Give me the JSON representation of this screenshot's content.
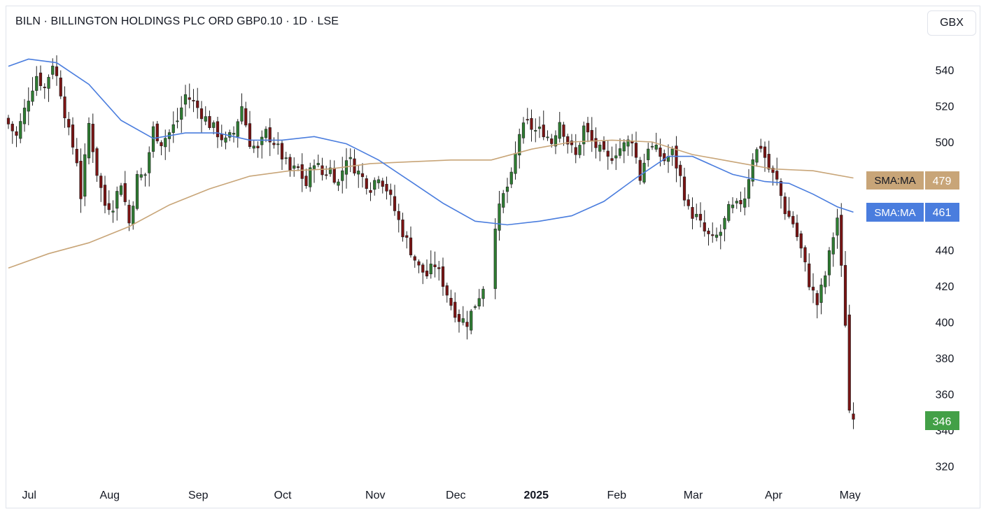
{
  "header": {
    "title": "BILN · BILLINGTON HOLDINGS PLC ORD GBP0.10 · 1D · LSE",
    "currency": "GBX"
  },
  "colors": {
    "up": "#2e7d32",
    "down": "#7b1414",
    "sma_short": "#4a7dde",
    "sma_long": "#c8a578",
    "price_badge": "#43a047"
  },
  "chart_data": {
    "type": "candlestick",
    "ylim": [
      315,
      555
    ],
    "y_ticks": [
      320,
      340,
      360,
      380,
      400,
      420,
      440,
      460,
      480,
      500,
      520,
      540
    ],
    "x_labels": [
      {
        "label": "Jul",
        "index": 5
      },
      {
        "label": "Aug",
        "index": 25
      },
      {
        "label": "Sep",
        "index": 47
      },
      {
        "label": "Oct",
        "index": 68
      },
      {
        "label": "Nov",
        "index": 91
      },
      {
        "label": "Dec",
        "index": 111
      },
      {
        "label": "2025",
        "index": 131,
        "bold": true
      },
      {
        "label": "Feb",
        "index": 151
      },
      {
        "label": "Mar",
        "index": 170
      },
      {
        "label": "Apr",
        "index": 190
      },
      {
        "label": "May",
        "index": 209
      }
    ],
    "x_domain": [
      0,
      212
    ],
    "gaps": [
      [
        118,
        121
      ]
    ],
    "waypoints": [
      [
        0,
        510
      ],
      [
        2,
        503
      ],
      [
        5,
        525
      ],
      [
        7,
        537
      ],
      [
        9,
        530
      ],
      [
        11,
        544
      ],
      [
        13,
        528
      ],
      [
        15,
        505
      ],
      [
        17,
        490
      ],
      [
        18,
        470
      ],
      [
        20,
        510
      ],
      [
        22,
        483
      ],
      [
        24,
        465
      ],
      [
        26,
        465
      ],
      [
        28,
        478
      ],
      [
        30,
        455
      ],
      [
        32,
        480
      ],
      [
        34,
        482
      ],
      [
        36,
        507
      ],
      [
        38,
        500
      ],
      [
        40,
        505
      ],
      [
        42,
        512
      ],
      [
        44,
        526
      ],
      [
        46,
        522
      ],
      [
        48,
        516
      ],
      [
        50,
        510
      ],
      [
        52,
        505
      ],
      [
        54,
        500
      ],
      [
        56,
        505
      ],
      [
        58,
        520
      ],
      [
        60,
        500
      ],
      [
        62,
        495
      ],
      [
        64,
        505
      ],
      [
        66,
        500
      ],
      [
        68,
        492
      ],
      [
        70,
        484
      ],
      [
        72,
        485
      ],
      [
        74,
        476
      ],
      [
        76,
        490
      ],
      [
        78,
        482
      ],
      [
        80,
        485
      ],
      [
        82,
        477
      ],
      [
        84,
        492
      ],
      [
        86,
        486
      ],
      [
        88,
        480
      ],
      [
        90,
        475
      ],
      [
        92,
        482
      ],
      [
        94,
        474
      ],
      [
        96,
        462
      ],
      [
        98,
        450
      ],
      [
        100,
        440
      ],
      [
        102,
        430
      ],
      [
        104,
        426
      ],
      [
        106,
        432
      ],
      [
        108,
        422
      ],
      [
        110,
        410
      ],
      [
        112,
        402
      ],
      [
        114,
        400
      ],
      [
        116,
        410
      ],
      [
        118,
        420
      ],
      [
        121,
        455
      ],
      [
        123,
        470
      ],
      [
        125,
        480
      ],
      [
        127,
        505
      ],
      [
        129,
        510
      ],
      [
        131,
        506
      ],
      [
        133,
        506
      ],
      [
        135,
        500
      ],
      [
        137,
        512
      ],
      [
        139,
        500
      ],
      [
        141,
        492
      ],
      [
        143,
        508
      ],
      [
        145,
        500
      ],
      [
        147,
        495
      ],
      [
        149,
        490
      ],
      [
        151,
        495
      ],
      [
        153,
        498
      ],
      [
        155,
        502
      ],
      [
        157,
        480
      ],
      [
        159,
        498
      ],
      [
        161,
        495
      ],
      [
        163,
        490
      ],
      [
        165,
        494
      ],
      [
        167,
        480
      ],
      [
        169,
        462
      ],
      [
        171,
        458
      ],
      [
        173,
        450
      ],
      [
        175,
        445
      ],
      [
        177,
        450
      ],
      [
        179,
        462
      ],
      [
        181,
        464
      ],
      [
        183,
        470
      ],
      [
        185,
        492
      ],
      [
        187,
        498
      ],
      [
        189,
        485
      ],
      [
        191,
        478
      ],
      [
        193,
        462
      ],
      [
        195,
        455
      ],
      [
        197,
        440
      ],
      [
        199,
        422
      ],
      [
        201,
        410
      ],
      [
        203,
        426
      ],
      [
        205,
        448
      ],
      [
        206,
        458
      ],
      [
        208,
        400
      ],
      [
        209,
        352
      ],
      [
        210,
        346
      ]
    ],
    "last_price": 346,
    "series": [
      {
        "name": "SMA:MA",
        "value": 479,
        "points": [
          [
            0,
            430
          ],
          [
            10,
            438
          ],
          [
            20,
            444
          ],
          [
            30,
            453
          ],
          [
            40,
            465
          ],
          [
            50,
            474
          ],
          [
            60,
            481
          ],
          [
            70,
            484
          ],
          [
            80,
            485
          ],
          [
            90,
            488
          ],
          [
            100,
            489
          ],
          [
            110,
            490
          ],
          [
            120,
            490
          ],
          [
            130,
            496
          ],
          [
            140,
            500
          ],
          [
            150,
            501
          ],
          [
            160,
            500
          ],
          [
            170,
            493
          ],
          [
            180,
            489
          ],
          [
            190,
            485
          ],
          [
            200,
            484
          ],
          [
            210,
            480
          ]
        ]
      },
      {
        "name": "SMA:MA",
        "value": 461,
        "points": [
          [
            0,
            542
          ],
          [
            5,
            546
          ],
          [
            12,
            544
          ],
          [
            20,
            532
          ],
          [
            28,
            512
          ],
          [
            36,
            502
          ],
          [
            44,
            505
          ],
          [
            52,
            505
          ],
          [
            60,
            501
          ],
          [
            68,
            501
          ],
          [
            76,
            503
          ],
          [
            84,
            499
          ],
          [
            92,
            490
          ],
          [
            100,
            478
          ],
          [
            108,
            466
          ],
          [
            116,
            456
          ],
          [
            124,
            454
          ],
          [
            132,
            456
          ],
          [
            140,
            459
          ],
          [
            148,
            467
          ],
          [
            156,
            480
          ],
          [
            164,
            492
          ],
          [
            170,
            492
          ],
          [
            180,
            482
          ],
          [
            188,
            478
          ],
          [
            194,
            477
          ],
          [
            200,
            471
          ],
          [
            206,
            464
          ],
          [
            210,
            461
          ]
        ]
      }
    ]
  },
  "labels": {
    "badge_long_name": "SMA:MA",
    "badge_long_value": "479",
    "badge_short_name": "SMA:MA",
    "badge_short_value": "461",
    "price_value": "346"
  }
}
